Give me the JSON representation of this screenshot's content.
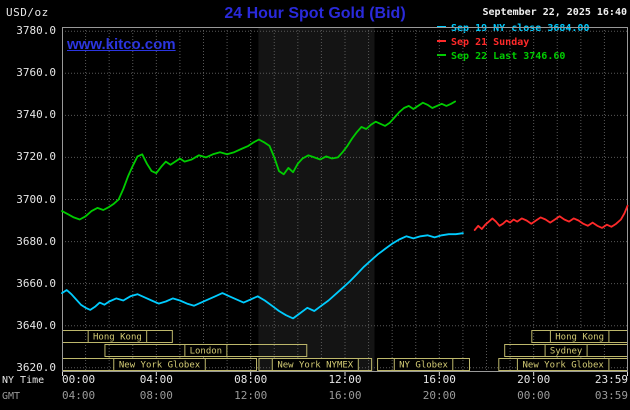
{
  "header": {
    "units": "USD/oz",
    "title": "24 Hour Spot Gold (Bid)",
    "datetime": "September 22, 2025 16:40",
    "watermark": "www.kitco.com"
  },
  "legend": [
    {
      "id": "sep19",
      "label": "Sep 19 NY close 3684.00",
      "color": "#00ccff"
    },
    {
      "id": "sep21",
      "label": "Sep 21 Sunday",
      "color": "#ff2a2a"
    },
    {
      "id": "sep22",
      "label": "Sep 22 Last 3746.60",
      "color": "#00cc00"
    }
  ],
  "axes": {
    "ny_label": "NY Time",
    "gmt_label": "GMT",
    "tick_hours": [
      0,
      4,
      8,
      12,
      16,
      20,
      24
    ],
    "ny_ticks": [
      "00:00",
      "04:00",
      "08:00",
      "12:00",
      "16:00",
      "20:00",
      "23:59"
    ],
    "gmt_ticks": [
      "04:00",
      "08:00",
      "12:00",
      "16:00",
      "20:00",
      "00:00",
      "03:59"
    ],
    "y_ticks": [
      3780,
      3760,
      3740,
      3720,
      3700,
      3680,
      3660,
      3640,
      3620
    ]
  },
  "chart_data": {
    "type": "line",
    "title": "24 Hour Spot Gold (Bid)",
    "x_unit": "hours (NY Time)",
    "xlim": [
      0,
      24
    ],
    "ylim": [
      3620,
      3780
    ],
    "grid": true,
    "nymex_band_hours": [
      8.33,
      13.25
    ],
    "series": [
      {
        "id": "sep19",
        "name": "Sep 19 NY close",
        "color": "#00ccff",
        "close": 3684.0,
        "points": [
          [
            0,
            3655.5
          ],
          [
            0.2,
            3657
          ],
          [
            0.4,
            3655
          ],
          [
            0.6,
            3652.5
          ],
          [
            0.8,
            3650
          ],
          [
            1.0,
            3648.5
          ],
          [
            1.2,
            3647.5
          ],
          [
            1.4,
            3649
          ],
          [
            1.6,
            3651
          ],
          [
            1.8,
            3650
          ],
          [
            2.0,
            3651.5
          ],
          [
            2.3,
            3653
          ],
          [
            2.6,
            3652
          ],
          [
            2.9,
            3654
          ],
          [
            3.2,
            3655
          ],
          [
            3.5,
            3653.5
          ],
          [
            3.8,
            3652
          ],
          [
            4.1,
            3650.5
          ],
          [
            4.4,
            3651.5
          ],
          [
            4.7,
            3653
          ],
          [
            5.0,
            3652
          ],
          [
            5.3,
            3650.5
          ],
          [
            5.6,
            3649.5
          ],
          [
            5.9,
            3651
          ],
          [
            6.2,
            3652.5
          ],
          [
            6.5,
            3654
          ],
          [
            6.8,
            3655.5
          ],
          [
            7.1,
            3654
          ],
          [
            7.4,
            3652.5
          ],
          [
            7.7,
            3651
          ],
          [
            8.0,
            3652.5
          ],
          [
            8.3,
            3654
          ],
          [
            8.6,
            3652
          ],
          [
            8.9,
            3649.5
          ],
          [
            9.2,
            3647
          ],
          [
            9.5,
            3645
          ],
          [
            9.8,
            3643.5
          ],
          [
            10.1,
            3646
          ],
          [
            10.4,
            3648.5
          ],
          [
            10.7,
            3647
          ],
          [
            11.0,
            3649.5
          ],
          [
            11.3,
            3652
          ],
          [
            11.6,
            3655
          ],
          [
            11.9,
            3658
          ],
          [
            12.2,
            3661
          ],
          [
            12.5,
            3664.5
          ],
          [
            12.8,
            3668
          ],
          [
            13.1,
            3671
          ],
          [
            13.4,
            3674
          ],
          [
            13.7,
            3676.5
          ],
          [
            14.0,
            3679
          ],
          [
            14.3,
            3681
          ],
          [
            14.6,
            3682.5
          ],
          [
            14.9,
            3681.5
          ],
          [
            15.2,
            3682.5
          ],
          [
            15.5,
            3683
          ],
          [
            15.8,
            3682
          ],
          [
            16.1,
            3683
          ],
          [
            16.4,
            3683.5
          ],
          [
            16.7,
            3683.5
          ],
          [
            17.0,
            3684
          ]
        ]
      },
      {
        "id": "sep21",
        "name": "Sep 21 Sunday",
        "color": "#ff2a2a",
        "points": [
          [
            17.5,
            3685.5
          ],
          [
            17.65,
            3687.5
          ],
          [
            17.8,
            3686
          ],
          [
            17.95,
            3688
          ],
          [
            18.1,
            3689.5
          ],
          [
            18.25,
            3691
          ],
          [
            18.4,
            3689.5
          ],
          [
            18.55,
            3687.5
          ],
          [
            18.7,
            3688.5
          ],
          [
            18.85,
            3690
          ],
          [
            19.0,
            3689
          ],
          [
            19.15,
            3690.5
          ],
          [
            19.3,
            3689.5
          ],
          [
            19.5,
            3691
          ],
          [
            19.7,
            3690
          ],
          [
            19.9,
            3688.5
          ],
          [
            20.1,
            3690
          ],
          [
            20.3,
            3691.5
          ],
          [
            20.5,
            3690.5
          ],
          [
            20.7,
            3689
          ],
          [
            20.9,
            3690.5
          ],
          [
            21.1,
            3692
          ],
          [
            21.3,
            3690.5
          ],
          [
            21.5,
            3689.5
          ],
          [
            21.7,
            3691
          ],
          [
            21.9,
            3690
          ],
          [
            22.1,
            3688.5
          ],
          [
            22.3,
            3687.5
          ],
          [
            22.5,
            3689
          ],
          [
            22.7,
            3687.5
          ],
          [
            22.9,
            3686.5
          ],
          [
            23.1,
            3688
          ],
          [
            23.3,
            3687
          ],
          [
            23.5,
            3688.5
          ],
          [
            23.7,
            3690.5
          ],
          [
            23.85,
            3693.5
          ],
          [
            23.98,
            3697
          ]
        ]
      },
      {
        "id": "sep22",
        "name": "Sep 22 Last",
        "color": "#00cc00",
        "last": 3746.6,
        "points": [
          [
            0,
            3694.5
          ],
          [
            0.25,
            3693
          ],
          [
            0.5,
            3691.5
          ],
          [
            0.75,
            3690.5
          ],
          [
            1.0,
            3692
          ],
          [
            1.25,
            3694.5
          ],
          [
            1.5,
            3696
          ],
          [
            1.75,
            3695
          ],
          [
            2.0,
            3696.5
          ],
          [
            2.2,
            3698
          ],
          [
            2.4,
            3700
          ],
          [
            2.6,
            3705
          ],
          [
            2.8,
            3711
          ],
          [
            3.0,
            3716
          ],
          [
            3.2,
            3720.5
          ],
          [
            3.4,
            3721.5
          ],
          [
            3.6,
            3717
          ],
          [
            3.8,
            3713.5
          ],
          [
            4.0,
            3712.5
          ],
          [
            4.2,
            3715.5
          ],
          [
            4.4,
            3718
          ],
          [
            4.6,
            3716.5
          ],
          [
            4.8,
            3718
          ],
          [
            5.0,
            3719.5
          ],
          [
            5.2,
            3718
          ],
          [
            5.5,
            3719
          ],
          [
            5.8,
            3721
          ],
          [
            6.1,
            3720
          ],
          [
            6.4,
            3721.5
          ],
          [
            6.7,
            3722.5
          ],
          [
            7.0,
            3721.5
          ],
          [
            7.3,
            3722.5
          ],
          [
            7.6,
            3724
          ],
          [
            7.9,
            3725.5
          ],
          [
            8.1,
            3727
          ],
          [
            8.35,
            3728.5
          ],
          [
            8.6,
            3727
          ],
          [
            8.8,
            3725.5
          ],
          [
            9.0,
            3720
          ],
          [
            9.2,
            3713.5
          ],
          [
            9.4,
            3712
          ],
          [
            9.6,
            3715
          ],
          [
            9.8,
            3713
          ],
          [
            10.0,
            3717
          ],
          [
            10.2,
            3719.5
          ],
          [
            10.45,
            3721
          ],
          [
            10.7,
            3720
          ],
          [
            10.95,
            3719
          ],
          [
            11.2,
            3720.5
          ],
          [
            11.45,
            3719.5
          ],
          [
            11.7,
            3720
          ],
          [
            11.9,
            3722.5
          ],
          [
            12.1,
            3725.5
          ],
          [
            12.3,
            3729
          ],
          [
            12.5,
            3732
          ],
          [
            12.7,
            3734.5
          ],
          [
            12.9,
            3733.5
          ],
          [
            13.1,
            3735.5
          ],
          [
            13.3,
            3737
          ],
          [
            13.5,
            3736
          ],
          [
            13.7,
            3735
          ],
          [
            13.9,
            3736.5
          ],
          [
            14.1,
            3739
          ],
          [
            14.3,
            3741.5
          ],
          [
            14.5,
            3743.5
          ],
          [
            14.7,
            3744.5
          ],
          [
            14.9,
            3743
          ],
          [
            15.1,
            3744.5
          ],
          [
            15.3,
            3746
          ],
          [
            15.5,
            3745
          ],
          [
            15.7,
            3743.5
          ],
          [
            15.9,
            3744.5
          ],
          [
            16.1,
            3745.5
          ],
          [
            16.3,
            3744.5
          ],
          [
            16.5,
            3745.5
          ],
          [
            16.67,
            3746.6
          ]
        ]
      }
    ],
    "sessions": [
      {
        "row": 0,
        "label": "Hong Kong",
        "start": 0,
        "end": 4.7
      },
      {
        "row": 0,
        "label": "Hong Kong",
        "start": 19.9,
        "end": 24
      },
      {
        "row": 1,
        "label": "London",
        "start": 1.8,
        "end": 10.4
      },
      {
        "row": 1,
        "label": "Sydney",
        "start": 18.75,
        "end": 24
      },
      {
        "row": 2,
        "label": "New York Globex",
        "start": 0,
        "end": 8.27
      },
      {
        "row": 2,
        "label": "New York NYMEX",
        "start": 8.33,
        "end": 13.15
      },
      {
        "row": 2,
        "label": "NY Globex",
        "start": 13.36,
        "end": 17.3
      },
      {
        "row": 2,
        "label": "New York Globex",
        "start": 18.5,
        "end": 24
      }
    ]
  },
  "colors": {
    "background": "#000000",
    "title_blue": "#2a2ada",
    "khaki": "#bdb76b",
    "axis_white": "#e6e6e6",
    "gmt_gray": "#9a9a9a"
  }
}
